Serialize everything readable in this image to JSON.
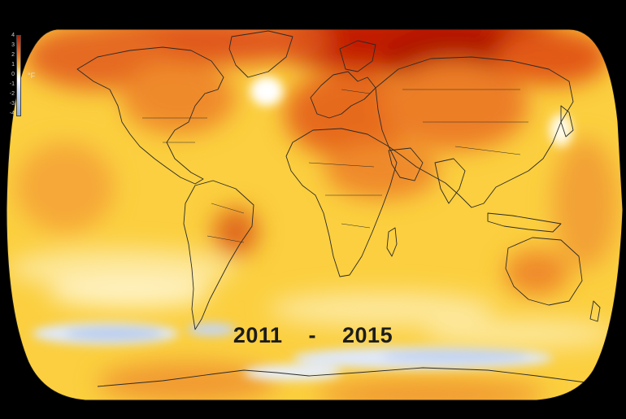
{
  "legend": {
    "ticks": [
      "4",
      "3",
      "2",
      "1",
      "0",
      "-1",
      "-2",
      "-3",
      "-4"
    ],
    "unit": "°F"
  },
  "period": {
    "start": "2011",
    "separator": "-",
    "end": "2015"
  }
}
